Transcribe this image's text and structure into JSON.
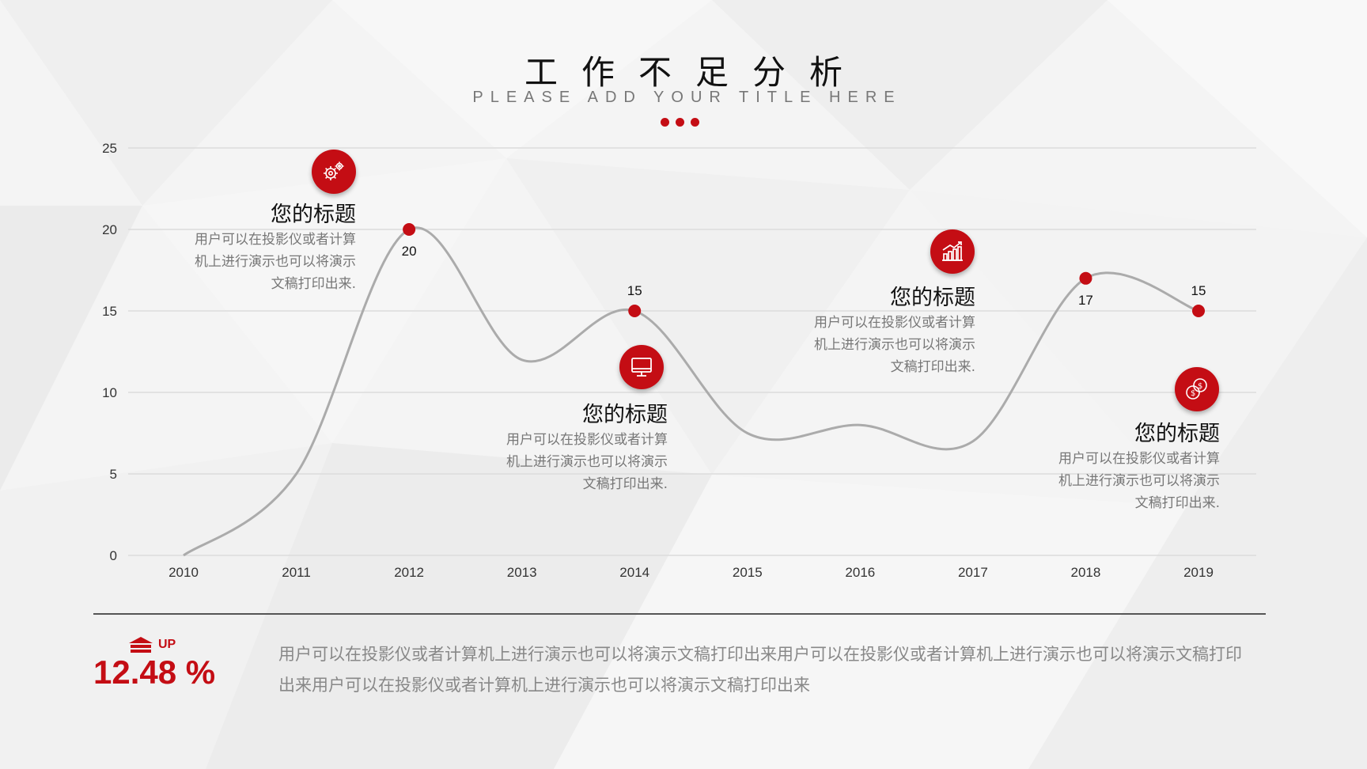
{
  "page": {
    "title": "工作不足分析",
    "subtitle": "PLEASE ADD YOUR TITLE HERE"
  },
  "colors": {
    "accent": "#c40d14",
    "line": "#ababab",
    "grid": "#dcdcdc"
  },
  "chart_data": {
    "type": "line",
    "smooth": true,
    "x": [
      "2010",
      "2011",
      "2012",
      "2013",
      "2014",
      "2015",
      "2016",
      "2017",
      "2018",
      "2019"
    ],
    "values": [
      0,
      5,
      20,
      12,
      15,
      7.5,
      8,
      7,
      17,
      15
    ],
    "ylim": [
      0,
      25
    ],
    "yticks": [
      0,
      5,
      10,
      15,
      20,
      25
    ],
    "grid": true,
    "labeled_points": [
      {
        "x": "2012",
        "value": 20,
        "label": "20"
      },
      {
        "x": "2014",
        "value": 15,
        "label": "15"
      },
      {
        "x": "2018",
        "value": 17,
        "label": "17"
      },
      {
        "x": "2019",
        "value": 15,
        "label": "15"
      }
    ]
  },
  "callouts": [
    {
      "icon": "gears-icon",
      "title": "您的标题",
      "text": "用户可以在投影仪或者计算\n机上进行演示也可以将演示\n文稿打印出来."
    },
    {
      "icon": "monitor-icon",
      "title": "您的标题",
      "text": "用户可以在投影仪或者计算\n机上进行演示也可以将演示\n文稿打印出来."
    },
    {
      "icon": "bar-chart-growth-icon",
      "title": "您的标题",
      "text": "用户可以在投影仪或者计算\n机上进行演示也可以将演示\n文稿打印出来."
    },
    {
      "icon": "coins-icon",
      "title": "您的标题",
      "text": "用户可以在投影仪或者计算\n机上进行演示也可以将演示\n文稿打印出来."
    }
  ],
  "summary": {
    "up_label": "UP",
    "up_icon": "house-up-icon",
    "percent": "12.48 %",
    "text": "用户可以在投影仪或者计算机上进行演示也可以将演示文稿打印出来用户可以在投影仪或者计算机上进行演示也可以将演示文稿打印出来用户可以在投影仪或者计算机上进行演示也可以将演示文稿打印出来"
  }
}
